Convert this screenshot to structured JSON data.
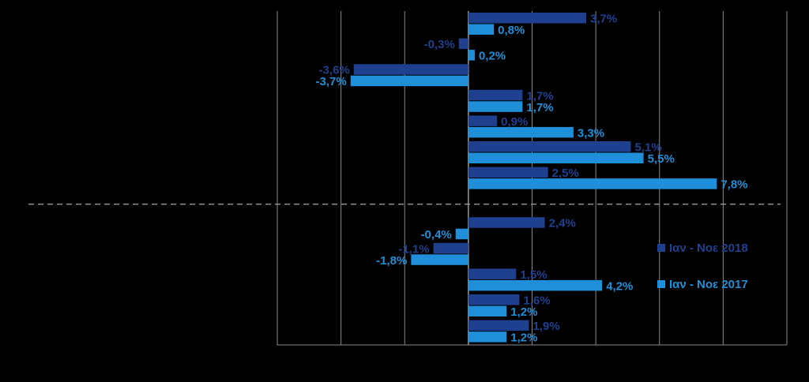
{
  "chart_data": {
    "type": "bar",
    "orientation": "horizontal",
    "xlim": [
      -6,
      10
    ],
    "x_grid_step": 2,
    "grid": true,
    "legend_position": "right",
    "categories": [
      "",
      "",
      "",
      "",
      "",
      "",
      "",
      "",
      "",
      "",
      "",
      ""
    ],
    "series": [
      {
        "name": "Ιαν - Νοε 2018",
        "color": "#1F3F8F",
        "values": [
          3.7,
          -0.3,
          -3.6,
          1.7,
          0.9,
          5.1,
          2.5,
          2.4,
          -1.1,
          1.5,
          1.6,
          1.9
        ],
        "labels": [
          "3,7%",
          "-0,3%",
          "-3,6%",
          "1,7%",
          "0,9%",
          "5,1%",
          "2,5%",
          "2,4%",
          "-1,1%",
          "1,5%",
          "1,6%",
          "1,9%"
        ]
      },
      {
        "name": "Ιαν - Νοε 2017",
        "color": "#1E8FD8",
        "values": [
          0.8,
          0.2,
          -3.7,
          1.7,
          3.3,
          5.5,
          7.8,
          -0.4,
          -1.8,
          4.2,
          1.2,
          1.2
        ],
        "labels": [
          "0,8%",
          "0,2%",
          "-3,7%",
          "1,7%",
          "3,3%",
          "5,5%",
          "7,8%",
          "-0,4%",
          "-1,8%",
          "4,2%",
          "1,2%",
          "1,2%"
        ]
      }
    ]
  }
}
